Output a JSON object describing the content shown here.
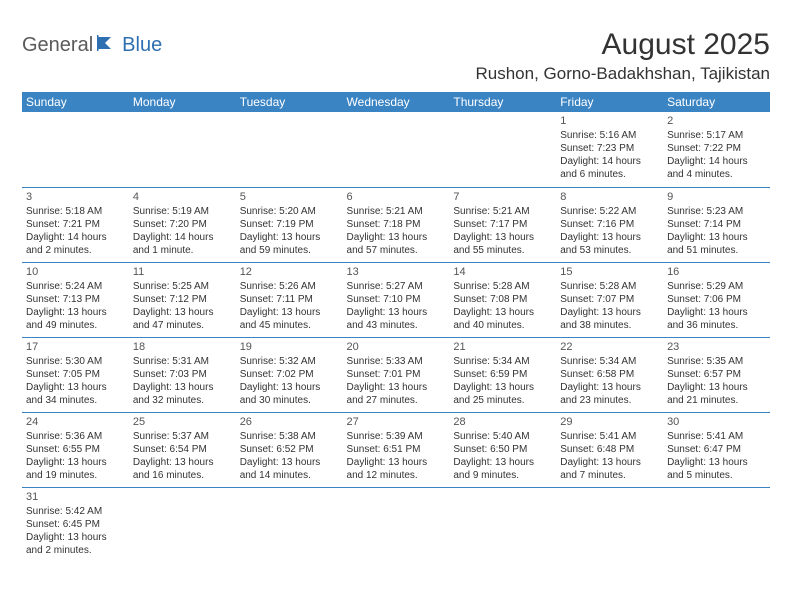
{
  "logo": {
    "text1": "General",
    "text2": "Blue"
  },
  "title": "August 2025",
  "location": "Rushon, Gorno-Badakhshan, Tajikistan",
  "colors": {
    "header_bg": "#3b84c4",
    "header_fg": "#ffffff",
    "border": "#3b84c4",
    "logo_gray": "#5a5a5a",
    "logo_blue": "#2d6fb0"
  },
  "day_headers": [
    "Sunday",
    "Monday",
    "Tuesday",
    "Wednesday",
    "Thursday",
    "Friday",
    "Saturday"
  ],
  "weeks": [
    [
      null,
      null,
      null,
      null,
      null,
      {
        "n": "1",
        "sr": "Sunrise: 5:16 AM",
        "ss": "Sunset: 7:23 PM",
        "d1": "Daylight: 14 hours",
        "d2": "and 6 minutes."
      },
      {
        "n": "2",
        "sr": "Sunrise: 5:17 AM",
        "ss": "Sunset: 7:22 PM",
        "d1": "Daylight: 14 hours",
        "d2": "and 4 minutes."
      }
    ],
    [
      {
        "n": "3",
        "sr": "Sunrise: 5:18 AM",
        "ss": "Sunset: 7:21 PM",
        "d1": "Daylight: 14 hours",
        "d2": "and 2 minutes."
      },
      {
        "n": "4",
        "sr": "Sunrise: 5:19 AM",
        "ss": "Sunset: 7:20 PM",
        "d1": "Daylight: 14 hours",
        "d2": "and 1 minute."
      },
      {
        "n": "5",
        "sr": "Sunrise: 5:20 AM",
        "ss": "Sunset: 7:19 PM",
        "d1": "Daylight: 13 hours",
        "d2": "and 59 minutes."
      },
      {
        "n": "6",
        "sr": "Sunrise: 5:21 AM",
        "ss": "Sunset: 7:18 PM",
        "d1": "Daylight: 13 hours",
        "d2": "and 57 minutes."
      },
      {
        "n": "7",
        "sr": "Sunrise: 5:21 AM",
        "ss": "Sunset: 7:17 PM",
        "d1": "Daylight: 13 hours",
        "d2": "and 55 minutes."
      },
      {
        "n": "8",
        "sr": "Sunrise: 5:22 AM",
        "ss": "Sunset: 7:16 PM",
        "d1": "Daylight: 13 hours",
        "d2": "and 53 minutes."
      },
      {
        "n": "9",
        "sr": "Sunrise: 5:23 AM",
        "ss": "Sunset: 7:14 PM",
        "d1": "Daylight: 13 hours",
        "d2": "and 51 minutes."
      }
    ],
    [
      {
        "n": "10",
        "sr": "Sunrise: 5:24 AM",
        "ss": "Sunset: 7:13 PM",
        "d1": "Daylight: 13 hours",
        "d2": "and 49 minutes."
      },
      {
        "n": "11",
        "sr": "Sunrise: 5:25 AM",
        "ss": "Sunset: 7:12 PM",
        "d1": "Daylight: 13 hours",
        "d2": "and 47 minutes."
      },
      {
        "n": "12",
        "sr": "Sunrise: 5:26 AM",
        "ss": "Sunset: 7:11 PM",
        "d1": "Daylight: 13 hours",
        "d2": "and 45 minutes."
      },
      {
        "n": "13",
        "sr": "Sunrise: 5:27 AM",
        "ss": "Sunset: 7:10 PM",
        "d1": "Daylight: 13 hours",
        "d2": "and 43 minutes."
      },
      {
        "n": "14",
        "sr": "Sunrise: 5:28 AM",
        "ss": "Sunset: 7:08 PM",
        "d1": "Daylight: 13 hours",
        "d2": "and 40 minutes."
      },
      {
        "n": "15",
        "sr": "Sunrise: 5:28 AM",
        "ss": "Sunset: 7:07 PM",
        "d1": "Daylight: 13 hours",
        "d2": "and 38 minutes."
      },
      {
        "n": "16",
        "sr": "Sunrise: 5:29 AM",
        "ss": "Sunset: 7:06 PM",
        "d1": "Daylight: 13 hours",
        "d2": "and 36 minutes."
      }
    ],
    [
      {
        "n": "17",
        "sr": "Sunrise: 5:30 AM",
        "ss": "Sunset: 7:05 PM",
        "d1": "Daylight: 13 hours",
        "d2": "and 34 minutes."
      },
      {
        "n": "18",
        "sr": "Sunrise: 5:31 AM",
        "ss": "Sunset: 7:03 PM",
        "d1": "Daylight: 13 hours",
        "d2": "and 32 minutes."
      },
      {
        "n": "19",
        "sr": "Sunrise: 5:32 AM",
        "ss": "Sunset: 7:02 PM",
        "d1": "Daylight: 13 hours",
        "d2": "and 30 minutes."
      },
      {
        "n": "20",
        "sr": "Sunrise: 5:33 AM",
        "ss": "Sunset: 7:01 PM",
        "d1": "Daylight: 13 hours",
        "d2": "and 27 minutes."
      },
      {
        "n": "21",
        "sr": "Sunrise: 5:34 AM",
        "ss": "Sunset: 6:59 PM",
        "d1": "Daylight: 13 hours",
        "d2": "and 25 minutes."
      },
      {
        "n": "22",
        "sr": "Sunrise: 5:34 AM",
        "ss": "Sunset: 6:58 PM",
        "d1": "Daylight: 13 hours",
        "d2": "and 23 minutes."
      },
      {
        "n": "23",
        "sr": "Sunrise: 5:35 AM",
        "ss": "Sunset: 6:57 PM",
        "d1": "Daylight: 13 hours",
        "d2": "and 21 minutes."
      }
    ],
    [
      {
        "n": "24",
        "sr": "Sunrise: 5:36 AM",
        "ss": "Sunset: 6:55 PM",
        "d1": "Daylight: 13 hours",
        "d2": "and 19 minutes."
      },
      {
        "n": "25",
        "sr": "Sunrise: 5:37 AM",
        "ss": "Sunset: 6:54 PM",
        "d1": "Daylight: 13 hours",
        "d2": "and 16 minutes."
      },
      {
        "n": "26",
        "sr": "Sunrise: 5:38 AM",
        "ss": "Sunset: 6:52 PM",
        "d1": "Daylight: 13 hours",
        "d2": "and 14 minutes."
      },
      {
        "n": "27",
        "sr": "Sunrise: 5:39 AM",
        "ss": "Sunset: 6:51 PM",
        "d1": "Daylight: 13 hours",
        "d2": "and 12 minutes."
      },
      {
        "n": "28",
        "sr": "Sunrise: 5:40 AM",
        "ss": "Sunset: 6:50 PM",
        "d1": "Daylight: 13 hours",
        "d2": "and 9 minutes."
      },
      {
        "n": "29",
        "sr": "Sunrise: 5:41 AM",
        "ss": "Sunset: 6:48 PM",
        "d1": "Daylight: 13 hours",
        "d2": "and 7 minutes."
      },
      {
        "n": "30",
        "sr": "Sunrise: 5:41 AM",
        "ss": "Sunset: 6:47 PM",
        "d1": "Daylight: 13 hours",
        "d2": "and 5 minutes."
      }
    ],
    [
      {
        "n": "31",
        "sr": "Sunrise: 5:42 AM",
        "ss": "Sunset: 6:45 PM",
        "d1": "Daylight: 13 hours",
        "d2": "and 2 minutes."
      },
      null,
      null,
      null,
      null,
      null,
      null
    ]
  ]
}
